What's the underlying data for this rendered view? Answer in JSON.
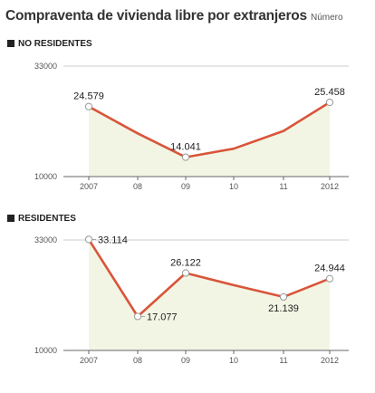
{
  "header": {
    "title": "Compraventa de vivienda libre por extranjeros",
    "subtitle": "Número"
  },
  "chart_data": [
    {
      "type": "area",
      "panel_label": "NO RESIDENTES",
      "categories": [
        "2007",
        "08",
        "09",
        "10",
        "11",
        "2012"
      ],
      "values": [
        24579,
        19000,
        14041,
        15800,
        19500,
        25458
      ],
      "data_labels": [
        {
          "index": 0,
          "text": "24.579",
          "pos": "above"
        },
        {
          "index": 2,
          "text": "14.041",
          "pos": "above"
        },
        {
          "index": 5,
          "text": "25.458",
          "pos": "above"
        }
      ],
      "ylim": [
        10000,
        33000
      ],
      "yticks": [
        "10000",
        "33000"
      ],
      "grid": false,
      "colors": {
        "line": "#d9553a",
        "fill": "#f2f5e4",
        "marker_fill": "#ffffff",
        "marker_stroke": "#999999"
      }
    },
    {
      "type": "area",
      "panel_label": "RESIDENTES",
      "categories": [
        "2007",
        "08",
        "09",
        "10",
        "11",
        "2012"
      ],
      "values": [
        33114,
        17077,
        26122,
        23600,
        21139,
        24944
      ],
      "data_labels": [
        {
          "index": 0,
          "text": "33.114",
          "pos": "right"
        },
        {
          "index": 1,
          "text": "17.077",
          "pos": "right"
        },
        {
          "index": 2,
          "text": "26.122",
          "pos": "above"
        },
        {
          "index": 4,
          "text": "21.139",
          "pos": "below"
        },
        {
          "index": 5,
          "text": "24.944",
          "pos": "above"
        }
      ],
      "ylim": [
        10000,
        33000
      ],
      "yticks": [
        "10000",
        "33000"
      ],
      "grid": false,
      "colors": {
        "line": "#d9553a",
        "fill": "#f2f5e4",
        "marker_fill": "#ffffff",
        "marker_stroke": "#999999"
      }
    }
  ]
}
